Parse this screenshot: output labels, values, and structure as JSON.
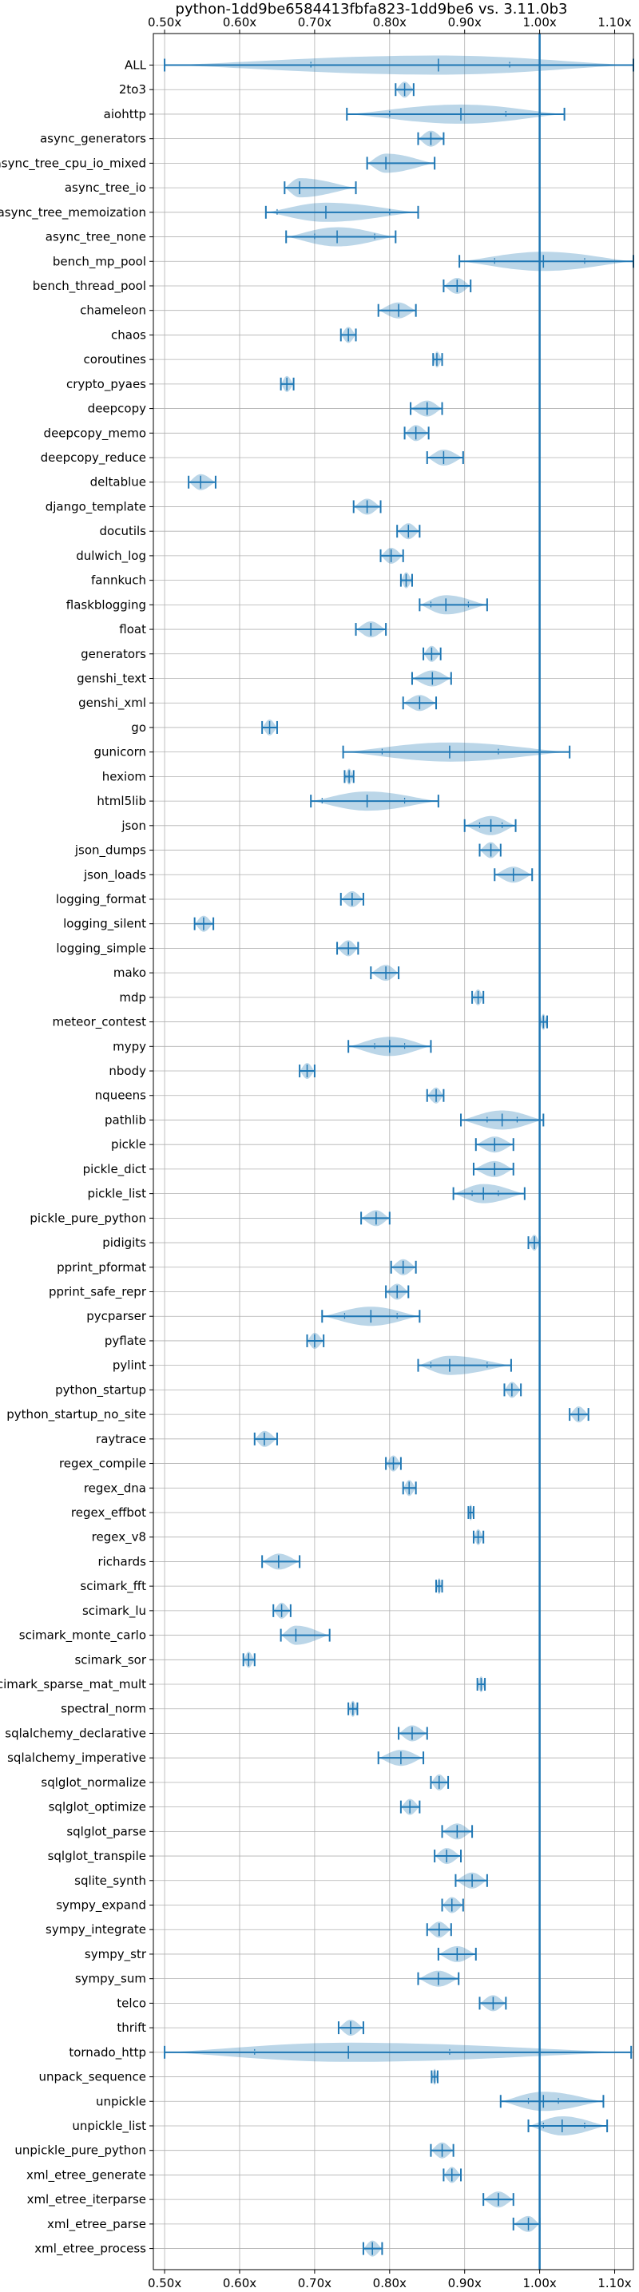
{
  "chart_data": {
    "type": "violin",
    "title": "python-1dd9be6584413fbfa823-1dd9be6 vs. 3.11.0b3",
    "x_ticks": [
      "0.50x",
      "0.60x",
      "0.70x",
      "0.80x",
      "0.90x",
      "1.00x",
      "1.10x"
    ],
    "x_tick_values": [
      0.5,
      0.6,
      0.7,
      0.8,
      0.9,
      1.0,
      1.1
    ],
    "xlim": [
      0.485,
      1.125
    ],
    "reference_line": 1.0,
    "grid": true,
    "colors": {
      "violin": "#1f77b4",
      "reference": "#1f77b4",
      "grid": "#b0b0b0"
    },
    "benchmarks": [
      {
        "name": "ALL",
        "min": 0.5,
        "max": 1.125,
        "median": 0.865,
        "q1": 0.695,
        "q3": 0.96
      },
      {
        "name": "2to3",
        "min": 0.808,
        "max": 0.832,
        "median": 0.82
      },
      {
        "name": "aiohttp",
        "min": 0.743,
        "max": 1.033,
        "median": 0.895,
        "q1": 0.8,
        "q3": 0.955
      },
      {
        "name": "async_generators",
        "min": 0.838,
        "max": 0.872,
        "median": 0.855
      },
      {
        "name": "async_tree_cpu_io_mixed",
        "min": 0.77,
        "max": 0.86,
        "median": 0.795
      },
      {
        "name": "async_tree_io",
        "min": 0.66,
        "max": 0.755,
        "median": 0.68
      },
      {
        "name": "async_tree_memoization",
        "min": 0.635,
        "max": 0.838,
        "median": 0.715,
        "q1": 0.65,
        "q3": 0.8
      },
      {
        "name": "async_tree_none",
        "min": 0.662,
        "max": 0.808,
        "median": 0.73,
        "q1": 0.7,
        "q3": 0.78
      },
      {
        "name": "bench_mp_pool",
        "min": 0.893,
        "max": 1.125,
        "median": 1.005,
        "q1": 0.94,
        "q3": 1.06
      },
      {
        "name": "bench_thread_pool",
        "min": 0.872,
        "max": 0.908,
        "median": 0.89
      },
      {
        "name": "chameleon",
        "min": 0.785,
        "max": 0.835,
        "median": 0.812
      },
      {
        "name": "chaos",
        "min": 0.735,
        "max": 0.755,
        "median": 0.745
      },
      {
        "name": "coroutines",
        "min": 0.858,
        "max": 0.87,
        "median": 0.863
      },
      {
        "name": "crypto_pyaes",
        "min": 0.655,
        "max": 0.672,
        "median": 0.663
      },
      {
        "name": "deepcopy",
        "min": 0.828,
        "max": 0.87,
        "median": 0.85
      },
      {
        "name": "deepcopy_memo",
        "min": 0.82,
        "max": 0.852,
        "median": 0.835
      },
      {
        "name": "deepcopy_reduce",
        "min": 0.85,
        "max": 0.898,
        "median": 0.872
      },
      {
        "name": "deltablue",
        "min": 0.532,
        "max": 0.568,
        "median": 0.548
      },
      {
        "name": "django_template",
        "min": 0.752,
        "max": 0.788,
        "median": 0.77
      },
      {
        "name": "docutils",
        "min": 0.81,
        "max": 0.84,
        "median": 0.825
      },
      {
        "name": "dulwich_log",
        "min": 0.788,
        "max": 0.818,
        "median": 0.802
      },
      {
        "name": "fannkuch",
        "min": 0.815,
        "max": 0.83,
        "median": 0.822
      },
      {
        "name": "flaskblogging",
        "min": 0.84,
        "max": 0.93,
        "median": 0.875,
        "q1": 0.855,
        "q3": 0.905
      },
      {
        "name": "float",
        "min": 0.755,
        "max": 0.795,
        "median": 0.775
      },
      {
        "name": "generators",
        "min": 0.845,
        "max": 0.868,
        "median": 0.856
      },
      {
        "name": "genshi_text",
        "min": 0.83,
        "max": 0.882,
        "median": 0.857
      },
      {
        "name": "genshi_xml",
        "min": 0.818,
        "max": 0.862,
        "median": 0.84
      },
      {
        "name": "go",
        "min": 0.63,
        "max": 0.65,
        "median": 0.64
      },
      {
        "name": "gunicorn",
        "min": 0.738,
        "max": 1.04,
        "median": 0.88,
        "q1": 0.79,
        "q3": 0.945
      },
      {
        "name": "hexiom",
        "min": 0.74,
        "max": 0.752,
        "median": 0.746
      },
      {
        "name": "html5lib",
        "min": 0.695,
        "max": 0.865,
        "median": 0.77,
        "q1": 0.71,
        "q3": 0.82
      },
      {
        "name": "json",
        "min": 0.9,
        "max": 0.968,
        "median": 0.935,
        "q1": 0.92,
        "q3": 0.95
      },
      {
        "name": "json_dumps",
        "min": 0.92,
        "max": 0.948,
        "median": 0.935
      },
      {
        "name": "json_loads",
        "min": 0.94,
        "max": 0.99,
        "median": 0.965
      },
      {
        "name": "logging_format",
        "min": 0.735,
        "max": 0.765,
        "median": 0.75
      },
      {
        "name": "logging_silent",
        "min": 0.54,
        "max": 0.565,
        "median": 0.552
      },
      {
        "name": "logging_simple",
        "min": 0.73,
        "max": 0.758,
        "median": 0.745
      },
      {
        "name": "mako",
        "min": 0.775,
        "max": 0.812,
        "median": 0.795
      },
      {
        "name": "mdp",
        "min": 0.91,
        "max": 0.925,
        "median": 0.918
      },
      {
        "name": "meteor_contest",
        "min": 1.0,
        "max": 1.01,
        "median": 1.005
      },
      {
        "name": "mypy",
        "min": 0.745,
        "max": 0.855,
        "median": 0.8,
        "q1": 0.78,
        "q3": 0.82
      },
      {
        "name": "nbody",
        "min": 0.68,
        "max": 0.7,
        "median": 0.69
      },
      {
        "name": "nqueens",
        "min": 0.85,
        "max": 0.872,
        "median": 0.862
      },
      {
        "name": "pathlib",
        "min": 0.895,
        "max": 1.005,
        "median": 0.95,
        "q1": 0.93,
        "q3": 0.97
      },
      {
        "name": "pickle",
        "min": 0.915,
        "max": 0.965,
        "median": 0.94
      },
      {
        "name": "pickle_dict",
        "min": 0.912,
        "max": 0.965,
        "median": 0.94
      },
      {
        "name": "pickle_list",
        "min": 0.885,
        "max": 0.98,
        "median": 0.925,
        "q1": 0.91,
        "q3": 0.945
      },
      {
        "name": "pickle_pure_python",
        "min": 0.762,
        "max": 0.8,
        "median": 0.782
      },
      {
        "name": "pidigits",
        "min": 0.985,
        "max": 1.0,
        "median": 0.993
      },
      {
        "name": "pprint_pformat",
        "min": 0.802,
        "max": 0.835,
        "median": 0.818
      },
      {
        "name": "pprint_safe_repr",
        "min": 0.795,
        "max": 0.825,
        "median": 0.81
      },
      {
        "name": "pycparser",
        "min": 0.71,
        "max": 0.84,
        "median": 0.775,
        "q1": 0.74,
        "q3": 0.81
      },
      {
        "name": "pyflate",
        "min": 0.69,
        "max": 0.712,
        "median": 0.7
      },
      {
        "name": "pylint",
        "min": 0.838,
        "max": 0.962,
        "median": 0.88,
        "q1": 0.855,
        "q3": 0.93
      },
      {
        "name": "python_startup",
        "min": 0.953,
        "max": 0.975,
        "median": 0.963
      },
      {
        "name": "python_startup_no_site",
        "min": 1.04,
        "max": 1.065,
        "median": 1.052
      },
      {
        "name": "raytrace",
        "min": 0.62,
        "max": 0.65,
        "median": 0.633
      },
      {
        "name": "regex_compile",
        "min": 0.795,
        "max": 0.815,
        "median": 0.805
      },
      {
        "name": "regex_dna",
        "min": 0.818,
        "max": 0.835,
        "median": 0.826
      },
      {
        "name": "regex_effbot",
        "min": 0.905,
        "max": 0.912,
        "median": 0.908
      },
      {
        "name": "regex_v8",
        "min": 0.912,
        "max": 0.925,
        "median": 0.918
      },
      {
        "name": "richards",
        "min": 0.63,
        "max": 0.68,
        "median": 0.652
      },
      {
        "name": "scimark_fft",
        "min": 0.862,
        "max": 0.87,
        "median": 0.866
      },
      {
        "name": "scimark_lu",
        "min": 0.645,
        "max": 0.668,
        "median": 0.656
      },
      {
        "name": "scimark_monte_carlo",
        "min": 0.655,
        "max": 0.72,
        "median": 0.675
      },
      {
        "name": "scimark_sor",
        "min": 0.605,
        "max": 0.62,
        "median": 0.612
      },
      {
        "name": "scimark_sparse_mat_mult",
        "min": 0.917,
        "max": 0.927,
        "median": 0.922
      },
      {
        "name": "spectral_norm",
        "min": 0.745,
        "max": 0.757,
        "median": 0.751
      },
      {
        "name": "sqlalchemy_declarative",
        "min": 0.812,
        "max": 0.85,
        "median": 0.83
      },
      {
        "name": "sqlalchemy_imperative",
        "min": 0.785,
        "max": 0.845,
        "median": 0.815
      },
      {
        "name": "sqlglot_normalize",
        "min": 0.855,
        "max": 0.878,
        "median": 0.866
      },
      {
        "name": "sqlglot_optimize",
        "min": 0.815,
        "max": 0.84,
        "median": 0.827
      },
      {
        "name": "sqlglot_parse",
        "min": 0.87,
        "max": 0.91,
        "median": 0.89
      },
      {
        "name": "sqlglot_transpile",
        "min": 0.86,
        "max": 0.895,
        "median": 0.876
      },
      {
        "name": "sqlite_synth",
        "min": 0.888,
        "max": 0.93,
        "median": 0.91
      },
      {
        "name": "sympy_expand",
        "min": 0.87,
        "max": 0.898,
        "median": 0.883
      },
      {
        "name": "sympy_integrate",
        "min": 0.85,
        "max": 0.882,
        "median": 0.866
      },
      {
        "name": "sympy_str",
        "min": 0.865,
        "max": 0.915,
        "median": 0.89
      },
      {
        "name": "sympy_sum",
        "min": 0.838,
        "max": 0.892,
        "median": 0.865
      },
      {
        "name": "telco",
        "min": 0.92,
        "max": 0.955,
        "median": 0.938
      },
      {
        "name": "thrift",
        "min": 0.732,
        "max": 0.765,
        "median": 0.748
      },
      {
        "name": "tornado_http",
        "min": 0.5,
        "max": 1.122,
        "median": 0.745,
        "q1": 0.62,
        "q3": 0.88
      },
      {
        "name": "unpack_sequence",
        "min": 0.856,
        "max": 0.864,
        "median": 0.86
      },
      {
        "name": "unpickle",
        "min": 0.948,
        "max": 1.085,
        "median": 1.005,
        "q1": 0.985,
        "q3": 1.025
      },
      {
        "name": "unpickle_list",
        "min": 0.985,
        "max": 1.09,
        "median": 1.03,
        "q1": 1.005,
        "q3": 1.06
      },
      {
        "name": "unpickle_pure_python",
        "min": 0.855,
        "max": 0.885,
        "median": 0.87
      },
      {
        "name": "xml_etree_generate",
        "min": 0.872,
        "max": 0.895,
        "median": 0.883
      },
      {
        "name": "xml_etree_iterparse",
        "min": 0.925,
        "max": 0.965,
        "median": 0.945
      },
      {
        "name": "xml_etree_parse",
        "min": 0.965,
        "max": 1.0,
        "median": 0.985
      },
      {
        "name": "xml_etree_process",
        "min": 0.765,
        "max": 0.79,
        "median": 0.777
      }
    ]
  }
}
